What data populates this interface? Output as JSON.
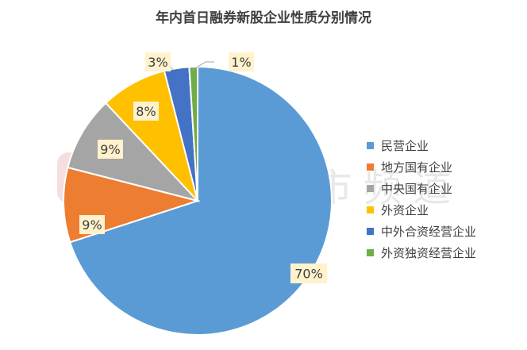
{
  "chart_data": {
    "type": "pie",
    "title": "年内首日融券新股企业性质分别情况",
    "categories": [
      "民营企业",
      "地方国有企业",
      "中央国有企业",
      "外资企业",
      "中外合资经营企业",
      "外资独资经营企业"
    ],
    "values": [
      70,
      9,
      9,
      8,
      3,
      1
    ],
    "labels": [
      "70%",
      "9%",
      "9%",
      "8%",
      "3%",
      "1%"
    ],
    "colors": [
      "#5B9BD5",
      "#ED7D31",
      "#A5A5A5",
      "#FFC000",
      "#4472C4",
      "#70AD47"
    ],
    "legend_position": "right"
  },
  "watermark": "财联社股市频道"
}
